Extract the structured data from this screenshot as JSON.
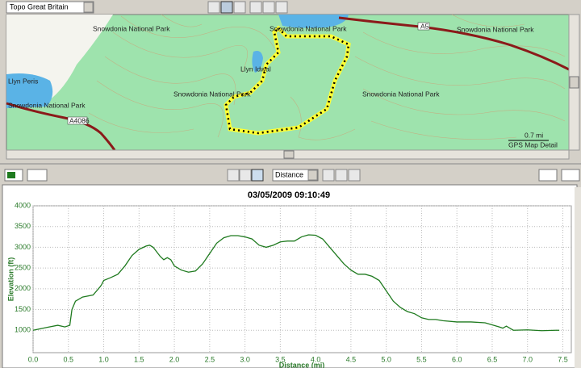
{
  "toolbar": {
    "map_product": "Topo Great Britain",
    "profile_axis": "Distance"
  },
  "map": {
    "labels": [
      "Snowdonia National Park",
      "Snowdonia National Park",
      "Snowdonia National Park",
      "Snowdonia National Park",
      "Snowdonia National Park",
      "Snowdonia National Park",
      "Llyn Idwal",
      "Llyn Peris",
      "A5",
      "A4086"
    ],
    "scale": "0.7 mi",
    "detail": "GPS Map Detail"
  },
  "chart_data": {
    "type": "line",
    "title": "03/05/2009 09:10:49",
    "x_label": "Distance (mi)",
    "y_label": "Elevation (ft)",
    "xlim": [
      0,
      7.62
    ],
    "ylim": [
      460,
      4000
    ],
    "xticks": [
      {
        "value": 0,
        "label": "0.0"
      },
      {
        "value": 0.5,
        "label": "0.5"
      },
      {
        "value": 1,
        "label": "1.0"
      },
      {
        "value": 1.5,
        "label": "1.5"
      },
      {
        "value": 2,
        "label": "2.0"
      },
      {
        "value": 2.5,
        "label": "2.5"
      },
      {
        "value": 3,
        "label": "3.0"
      },
      {
        "value": 3.5,
        "label": "3.5"
      },
      {
        "value": 4,
        "label": "4.0"
      },
      {
        "value": 4.5,
        "label": "4.5"
      },
      {
        "value": 5,
        "label": "5.0"
      },
      {
        "value": 5.5,
        "label": "5.5"
      },
      {
        "value": 6,
        "label": "6.0"
      },
      {
        "value": 6.5,
        "label": "6.5"
      },
      {
        "value": 7,
        "label": "7.0"
      },
      {
        "value": 7.5,
        "label": "7.5"
      }
    ],
    "yticks": [
      1000,
      1500,
      2000,
      2500,
      3000,
      3500,
      4000
    ],
    "grid": true,
    "x": [
      0,
      0.2,
      0.35,
      0.45,
      0.52,
      0.55,
      0.6,
      0.7,
      0.85,
      0.95,
      0.97,
      1.0,
      1.1,
      1.2,
      1.3,
      1.4,
      1.5,
      1.6,
      1.65,
      1.7,
      1.8,
      1.85,
      1.9,
      1.95,
      2.0,
      2.1,
      2.2,
      2.3,
      2.4,
      2.5,
      2.6,
      2.7,
      2.8,
      2.9,
      3.0,
      3.1,
      3.2,
      3.3,
      3.4,
      3.5,
      3.6,
      3.7,
      3.8,
      3.9,
      4.0,
      4.1,
      4.2,
      4.3,
      4.4,
      4.5,
      4.6,
      4.7,
      4.8,
      4.9,
      5.0,
      5.1,
      5.2,
      5.3,
      5.4,
      5.5,
      5.6,
      5.7,
      5.8,
      6.0,
      6.2,
      6.4,
      6.6,
      6.65,
      6.7,
      6.75,
      6.8,
      7.0,
      7.2,
      7.4,
      7.45
    ],
    "series": [
      {
        "name": "Elevation",
        "color": "#1f7a1f",
        "values": [
          1000,
          1070,
          1120,
          1080,
          1120,
          1500,
          1700,
          1800,
          1850,
          2050,
          2100,
          2200,
          2270,
          2350,
          2550,
          2800,
          2950,
          3030,
          3050,
          3000,
          2780,
          2700,
          2750,
          2700,
          2550,
          2450,
          2400,
          2430,
          2600,
          2850,
          3100,
          3230,
          3280,
          3280,
          3250,
          3200,
          3050,
          3000,
          3050,
          3130,
          3150,
          3150,
          3250,
          3300,
          3290,
          3200,
          3000,
          2800,
          2600,
          2450,
          2350,
          2350,
          2300,
          2200,
          1950,
          1700,
          1550,
          1450,
          1400,
          1300,
          1260,
          1260,
          1230,
          1200,
          1200,
          1180,
          1080,
          1050,
          1100,
          1050,
          1000,
          1010,
          990,
          1000,
          1000
        ]
      }
    ]
  }
}
